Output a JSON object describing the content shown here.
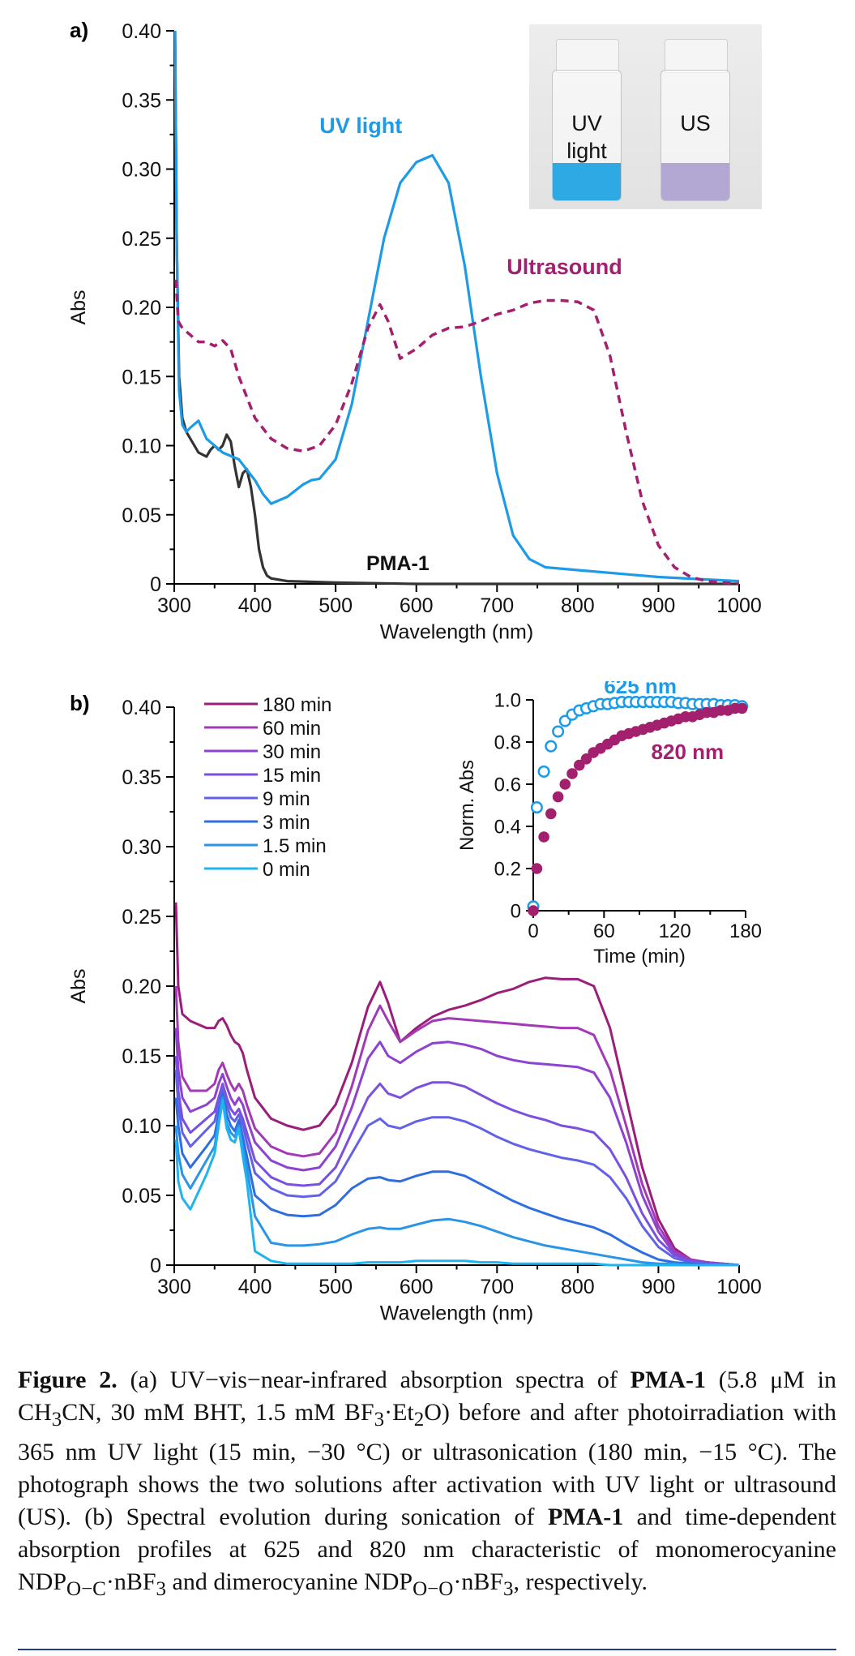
{
  "panel_a": {
    "label": "a)",
    "photo": {
      "vial_left_label_1": "UV",
      "vial_left_label_2": "light",
      "vial_right_label": "US",
      "vial_left_color": "#2fa9e3",
      "vial_right_color": "#b3a7d3"
    }
  },
  "panel_b": {
    "label": "b)"
  },
  "caption": {
    "fig": "Figure 2.",
    "t1": " (a) UV−vis−near-infrared absorption spectra of ",
    "pma1": "PMA-1",
    "t2": " (5.8 μM in CH",
    "sub3": "3",
    "t3": "CN, 30 mM BHT, 1.5 mM BF",
    "sub3b": "3",
    "t4": "·Et",
    "sub2": "2",
    "t5": "O) before and after photoirradiation with 365 nm UV light (15 min, −30 °C) or ultrasonication (180 min, −15 °C). The photograph shows the two solutions after activation with UV light or ultrasound (US). (b) Spectral evolution during sonication of ",
    "pma1b": "PMA-1",
    "t6": " and time-dependent absorption profiles at 625 and 820 nm characteristic of monomerocyanine NDP",
    "subOC": "O−C",
    "t7": "·nBF",
    "sub3c": "3",
    "t8": " and dimerocyanine NDP",
    "subOO": "O−O",
    "t9": "·nBF",
    "sub3d": "3",
    "t10": ", respectively."
  },
  "chart_data": [
    {
      "type": "line",
      "title": "",
      "xlabel": "Wavelength (nm)",
      "ylabel": "Abs",
      "xlim": [
        300,
        1000
      ],
      "ylim": [
        0,
        0.4
      ],
      "xticks": [
        "300",
        "400",
        "500",
        "600",
        "700",
        "800",
        "900",
        "1000"
      ],
      "yticks": [
        "0",
        "0.05",
        "0.10",
        "0.15",
        "0.20",
        "0.25",
        "0.30",
        "0.35",
        "0.40"
      ],
      "annotations": [
        {
          "text": "UV light",
          "color": "#1e9be6"
        },
        {
          "text": "Ultrasound",
          "color": "#a3206e"
        },
        {
          "text": "PMA-1",
          "color": "#111111"
        }
      ],
      "series": [
        {
          "name": "PMA-1",
          "color": "#333333",
          "dash": false,
          "x": [
            301,
            303,
            306,
            310,
            315,
            320,
            330,
            340,
            345,
            350,
            355,
            360,
            365,
            370,
            375,
            380,
            385,
            390,
            395,
            400,
            405,
            410,
            415,
            420,
            440,
            500,
            600,
            700,
            800,
            900,
            1000
          ],
          "y": [
            0.4,
            0.25,
            0.15,
            0.12,
            0.11,
            0.105,
            0.095,
            0.092,
            0.097,
            0.1,
            0.097,
            0.1,
            0.108,
            0.103,
            0.085,
            0.07,
            0.08,
            0.083,
            0.07,
            0.05,
            0.025,
            0.012,
            0.006,
            0.004,
            0.002,
            0.001,
            0.0,
            0.0,
            0.0,
            0.0,
            0.0
          ]
        },
        {
          "name": "UV light",
          "color": "#1e9be6",
          "dash": false,
          "x": [
            301,
            303,
            306,
            310,
            315,
            320,
            330,
            340,
            360,
            380,
            400,
            410,
            420,
            440,
            460,
            470,
            480,
            500,
            520,
            540,
            560,
            580,
            600,
            620,
            640,
            660,
            680,
            700,
            720,
            740,
            760,
            800,
            900,
            1000
          ],
          "y": [
            0.4,
            0.25,
            0.14,
            0.115,
            0.11,
            0.113,
            0.118,
            0.105,
            0.095,
            0.09,
            0.075,
            0.065,
            0.058,
            0.063,
            0.072,
            0.075,
            0.076,
            0.09,
            0.13,
            0.19,
            0.25,
            0.29,
            0.305,
            0.31,
            0.29,
            0.23,
            0.15,
            0.08,
            0.035,
            0.018,
            0.012,
            0.01,
            0.005,
            0.002
          ]
        },
        {
          "name": "Ultrasound",
          "color": "#a3206e",
          "dash": true,
          "x": [
            302,
            305,
            310,
            320,
            330,
            340,
            350,
            360,
            370,
            380,
            400,
            420,
            440,
            460,
            480,
            500,
            520,
            540,
            555,
            565,
            580,
            600,
            620,
            640,
            660,
            680,
            700,
            720,
            740,
            760,
            780,
            800,
            820,
            840,
            860,
            880,
            900,
            920,
            940,
            960,
            1000
          ],
          "y": [
            0.22,
            0.19,
            0.185,
            0.18,
            0.175,
            0.175,
            0.172,
            0.176,
            0.17,
            0.15,
            0.12,
            0.105,
            0.098,
            0.096,
            0.1,
            0.115,
            0.145,
            0.185,
            0.202,
            0.19,
            0.163,
            0.17,
            0.18,
            0.185,
            0.186,
            0.19,
            0.195,
            0.198,
            0.203,
            0.205,
            0.205,
            0.204,
            0.198,
            0.165,
            0.11,
            0.06,
            0.028,
            0.012,
            0.005,
            0.002,
            0.0
          ]
        }
      ]
    },
    {
      "type": "line",
      "title": "",
      "xlabel": "Wavelength (nm)",
      "ylabel": "Abs",
      "xlim": [
        300,
        1000
      ],
      "ylim": [
        0,
        0.4
      ],
      "xticks": [
        "300",
        "400",
        "500",
        "600",
        "700",
        "800",
        "900",
        "1000"
      ],
      "yticks": [
        "0",
        "0.05",
        "0.10",
        "0.15",
        "0.20",
        "0.25",
        "0.30",
        "0.35",
        "0.40"
      ],
      "legend": [
        "180 min",
        "60 min",
        "30 min",
        "15 min",
        "9 min",
        "3 min",
        "1.5 min",
        "0 min"
      ],
      "legend_colors": [
        "#9a1e7a",
        "#a23ab6",
        "#8d42d0",
        "#7b4fe0",
        "#6262e8",
        "#2f6ee0",
        "#2a94e6",
        "#1fb4f0"
      ],
      "series_x": [
        302,
        305,
        310,
        320,
        340,
        350,
        355,
        360,
        365,
        370,
        375,
        380,
        385,
        390,
        400,
        420,
        440,
        460,
        480,
        500,
        520,
        540,
        555,
        565,
        580,
        600,
        620,
        640,
        660,
        680,
        700,
        720,
        740,
        760,
        780,
        800,
        820,
        840,
        860,
        880,
        900,
        920,
        940,
        960,
        1000
      ],
      "series": [
        {
          "name": "180 min",
          "y": [
            0.26,
            0.2,
            0.18,
            0.175,
            0.17,
            0.17,
            0.175,
            0.177,
            0.172,
            0.165,
            0.16,
            0.158,
            0.152,
            0.14,
            0.12,
            0.105,
            0.1,
            0.097,
            0.1,
            0.115,
            0.145,
            0.185,
            0.203,
            0.188,
            0.16,
            0.17,
            0.178,
            0.183,
            0.186,
            0.19,
            0.195,
            0.198,
            0.203,
            0.206,
            0.205,
            0.205,
            0.2,
            0.17,
            0.12,
            0.07,
            0.033,
            0.012,
            0.004,
            0.002,
            0.0
          ]
        },
        {
          "name": "60 min",
          "y": [
            0.2,
            0.16,
            0.135,
            0.125,
            0.125,
            0.13,
            0.14,
            0.145,
            0.137,
            0.13,
            0.125,
            0.13,
            0.125,
            0.115,
            0.098,
            0.085,
            0.08,
            0.078,
            0.08,
            0.095,
            0.128,
            0.168,
            0.186,
            0.175,
            0.16,
            0.168,
            0.175,
            0.177,
            0.176,
            0.175,
            0.174,
            0.173,
            0.172,
            0.171,
            0.17,
            0.17,
            0.165,
            0.14,
            0.1,
            0.058,
            0.028,
            0.01,
            0.004,
            0.002,
            0.0
          ]
        },
        {
          "name": "30 min",
          "y": [
            0.17,
            0.14,
            0.12,
            0.11,
            0.115,
            0.12,
            0.13,
            0.137,
            0.128,
            0.12,
            0.115,
            0.12,
            0.115,
            0.105,
            0.088,
            0.075,
            0.07,
            0.068,
            0.07,
            0.085,
            0.113,
            0.148,
            0.16,
            0.15,
            0.145,
            0.153,
            0.159,
            0.16,
            0.158,
            0.155,
            0.15,
            0.147,
            0.145,
            0.144,
            0.143,
            0.142,
            0.138,
            0.12,
            0.088,
            0.05,
            0.024,
            0.008,
            0.003,
            0.002,
            0.0
          ]
        },
        {
          "name": "15 min",
          "y": [
            0.15,
            0.125,
            0.105,
            0.095,
            0.105,
            0.11,
            0.12,
            0.13,
            0.12,
            0.112,
            0.108,
            0.112,
            0.105,
            0.095,
            0.075,
            0.063,
            0.058,
            0.057,
            0.058,
            0.07,
            0.095,
            0.12,
            0.13,
            0.123,
            0.12,
            0.127,
            0.131,
            0.131,
            0.128,
            0.122,
            0.116,
            0.111,
            0.107,
            0.104,
            0.1,
            0.098,
            0.095,
            0.083,
            0.063,
            0.037,
            0.018,
            0.007,
            0.003,
            0.001,
            0.0
          ]
        },
        {
          "name": "9 min",
          "y": [
            0.14,
            0.115,
            0.095,
            0.085,
            0.097,
            0.103,
            0.115,
            0.127,
            0.115,
            0.106,
            0.103,
            0.108,
            0.1,
            0.088,
            0.066,
            0.055,
            0.05,
            0.049,
            0.05,
            0.06,
            0.08,
            0.1,
            0.105,
            0.1,
            0.098,
            0.103,
            0.106,
            0.106,
            0.103,
            0.098,
            0.092,
            0.087,
            0.083,
            0.08,
            0.077,
            0.075,
            0.072,
            0.063,
            0.048,
            0.028,
            0.013,
            0.005,
            0.002,
            0.001,
            0.0
          ]
        },
        {
          "name": "3 min",
          "y": [
            0.12,
            0.1,
            0.08,
            0.07,
            0.085,
            0.093,
            0.108,
            0.123,
            0.108,
            0.1,
            0.096,
            0.104,
            0.092,
            0.078,
            0.05,
            0.04,
            0.036,
            0.035,
            0.036,
            0.043,
            0.055,
            0.062,
            0.063,
            0.061,
            0.06,
            0.064,
            0.067,
            0.067,
            0.064,
            0.058,
            0.052,
            0.046,
            0.041,
            0.037,
            0.033,
            0.03,
            0.027,
            0.022,
            0.015,
            0.009,
            0.004,
            0.002,
            0.001,
            0.0,
            0.0
          ]
        },
        {
          "name": "1.5 min",
          "y": [
            0.1,
            0.08,
            0.065,
            0.055,
            0.075,
            0.085,
            0.103,
            0.12,
            0.102,
            0.095,
            0.092,
            0.1,
            0.085,
            0.07,
            0.035,
            0.016,
            0.014,
            0.014,
            0.015,
            0.017,
            0.022,
            0.026,
            0.027,
            0.026,
            0.026,
            0.029,
            0.032,
            0.033,
            0.031,
            0.028,
            0.024,
            0.02,
            0.017,
            0.014,
            0.012,
            0.01,
            0.008,
            0.006,
            0.004,
            0.002,
            0.001,
            0.001,
            0.0,
            0.0,
            0.0
          ]
        },
        {
          "name": "0 min",
          "y": [
            0.09,
            0.06,
            0.048,
            0.04,
            0.065,
            0.08,
            0.1,
            0.118,
            0.098,
            0.09,
            0.088,
            0.098,
            0.078,
            0.06,
            0.01,
            0.003,
            0.001,
            0.001,
            0.001,
            0.001,
            0.001,
            0.002,
            0.002,
            0.002,
            0.002,
            0.003,
            0.003,
            0.003,
            0.003,
            0.002,
            0.002,
            0.001,
            0.001,
            0.001,
            0.001,
            0.001,
            0.001,
            0.0,
            0.0,
            0.0,
            0.0,
            0.0,
            0.0,
            0.0,
            0.0
          ]
        }
      ]
    },
    {
      "type": "scatter",
      "title": "",
      "xlabel": "Time (min)",
      "ylabel": "Norm. Abs",
      "xlim": [
        0,
        180
      ],
      "ylim": [
        0,
        1.0
      ],
      "xticks": [
        "0",
        "60",
        "120",
        "180"
      ],
      "yticks": [
        "0",
        "0.2",
        "0.4",
        "0.6",
        "0.8",
        "1.0"
      ],
      "series": [
        {
          "name": "625 nm",
          "color": "#1e9be6",
          "marker": "open-circle",
          "x": [
            0,
            3,
            9,
            15,
            21,
            27,
            33,
            39,
            45,
            51,
            57,
            63,
            69,
            75,
            81,
            87,
            93,
            99,
            105,
            111,
            117,
            123,
            129,
            135,
            141,
            147,
            153,
            159,
            165,
            171,
            177
          ],
          "y": [
            0.02,
            0.49,
            0.66,
            0.78,
            0.85,
            0.9,
            0.93,
            0.95,
            0.96,
            0.97,
            0.98,
            0.98,
            0.985,
            0.99,
            0.99,
            0.99,
            0.99,
            0.99,
            0.99,
            0.99,
            0.99,
            0.985,
            0.985,
            0.98,
            0.98,
            0.98,
            0.98,
            0.975,
            0.975,
            0.975,
            0.97
          ]
        },
        {
          "name": "820 nm",
          "color": "#a3206e",
          "marker": "filled-circle",
          "x": [
            0,
            3,
            9,
            15,
            21,
            27,
            33,
            39,
            45,
            51,
            57,
            63,
            69,
            75,
            81,
            87,
            93,
            99,
            105,
            111,
            117,
            123,
            129,
            135,
            141,
            147,
            153,
            159,
            165,
            171,
            177
          ],
          "y": [
            0.0,
            0.2,
            0.35,
            0.46,
            0.54,
            0.6,
            0.65,
            0.69,
            0.72,
            0.75,
            0.77,
            0.79,
            0.81,
            0.83,
            0.84,
            0.85,
            0.86,
            0.87,
            0.88,
            0.89,
            0.9,
            0.91,
            0.92,
            0.92,
            0.93,
            0.94,
            0.94,
            0.95,
            0.95,
            0.96,
            0.96
          ]
        }
      ]
    }
  ]
}
